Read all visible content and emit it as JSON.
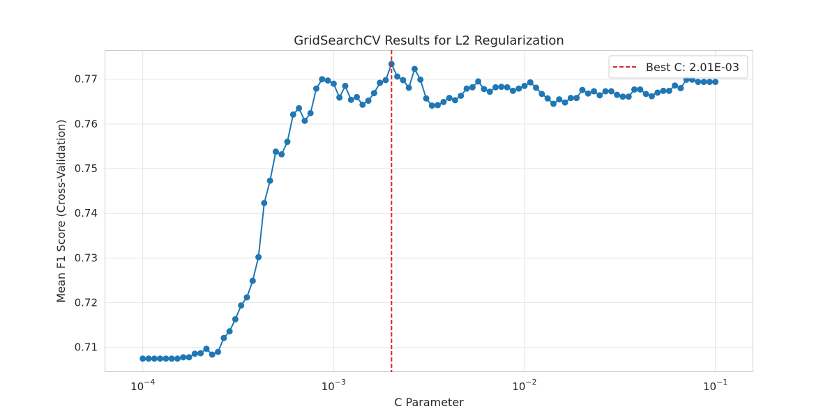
{
  "chart_data": {
    "type": "line",
    "title": "GridSearchCV Results for L2 Regularization",
    "xlabel": "C Parameter",
    "ylabel": "Mean F1 Score (Cross-Validation)",
    "x_scale": "log",
    "xlim": [
      6.31e-05,
      0.158
    ],
    "ylim": [
      0.7045,
      0.7765
    ],
    "x_ticks": [
      {
        "value": 0.0001,
        "base": "10",
        "exp": "−4"
      },
      {
        "value": 0.001,
        "base": "10",
        "exp": "−3"
      },
      {
        "value": 0.01,
        "base": "10",
        "exp": "−2"
      },
      {
        "value": 0.1,
        "base": "10",
        "exp": "−1"
      }
    ],
    "y_ticks": [
      {
        "value": 0.71,
        "label": "0.71"
      },
      {
        "value": 0.72,
        "label": "0.72"
      },
      {
        "value": 0.73,
        "label": "0.73"
      },
      {
        "value": 0.74,
        "label": "0.74"
      },
      {
        "value": 0.75,
        "label": "0.75"
      },
      {
        "value": 0.76,
        "label": "0.76"
      },
      {
        "value": 0.77,
        "label": "0.77"
      }
    ],
    "grid": true,
    "legend": {
      "position": "top-right",
      "entries": [
        "Best C: 2.01E-03"
      ]
    },
    "best_c": 0.00201,
    "colors": {
      "series": "#1f77b4",
      "best_line": "#d62728",
      "grid": "#e5e5e5",
      "frame": "#cccccc"
    },
    "series": [
      {
        "x_range": [
          0.0001,
          0.1
        ],
        "n_points": 100,
        "y": [
          0.7075,
          0.7075,
          0.7075,
          0.7075,
          0.7075,
          0.7075,
          0.7075,
          0.7078,
          0.7078,
          0.7086,
          0.7087,
          0.7097,
          0.7084,
          0.709,
          0.7121,
          0.7136,
          0.7163,
          0.7194,
          0.7212,
          0.7249,
          0.7302,
          0.7423,
          0.7473,
          0.7538,
          0.7532,
          0.756,
          0.7621,
          0.7635,
          0.7607,
          0.7624,
          0.7679,
          0.77,
          0.7697,
          0.769,
          0.7659,
          0.7685,
          0.7654,
          0.766,
          0.7643,
          0.7652,
          0.7669,
          0.7692,
          0.7698,
          0.7734,
          0.7706,
          0.7698,
          0.7681,
          0.7723,
          0.7699,
          0.7657,
          0.7641,
          0.7642,
          0.7649,
          0.7658,
          0.7653,
          0.7663,
          0.7679,
          0.7682,
          0.7695,
          0.7678,
          0.7672,
          0.7682,
          0.7683,
          0.7682,
          0.7674,
          0.7679,
          0.7685,
          0.7693,
          0.7681,
          0.7667,
          0.7657,
          0.7645,
          0.7655,
          0.7648,
          0.7658,
          0.7658,
          0.7676,
          0.7668,
          0.7673,
          0.7664,
          0.7673,
          0.7673,
          0.7665,
          0.7661,
          0.7661,
          0.7677,
          0.7677,
          0.7667,
          0.7662,
          0.767,
          0.7674,
          0.7674,
          0.7686,
          0.768,
          0.7699,
          0.7699,
          0.7694,
          0.7694,
          0.7694,
          0.7694
        ]
      }
    ]
  }
}
